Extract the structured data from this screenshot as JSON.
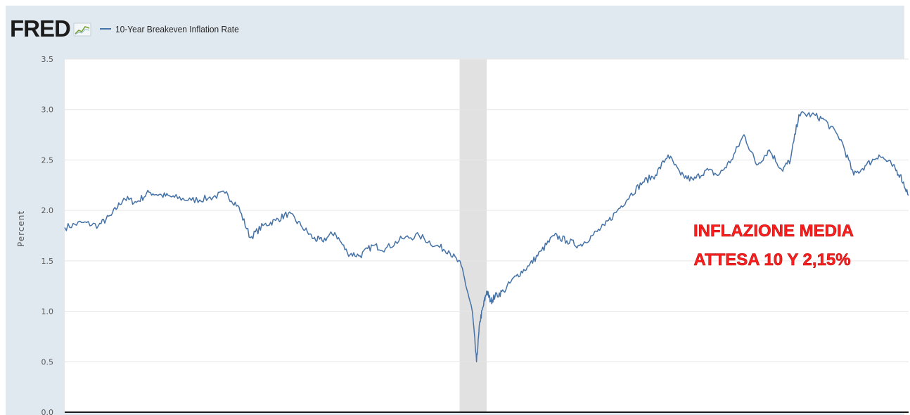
{
  "header": {
    "logo_text": "FRED",
    "logo_icon": "chart-line-icon",
    "series_label": "10-Year Breakeven Inflation Rate"
  },
  "colors": {
    "series": "#4572a7",
    "recession_band": "#e1e1e1",
    "frame": "#e1e9f0",
    "annotation": "#ff1e1e"
  },
  "chart_data": {
    "type": "line",
    "title": "",
    "xlabel": "",
    "ylabel": "Percent",
    "ylim": [
      0.0,
      3.5
    ],
    "yticks": [
      0.0,
      0.5,
      1.0,
      1.5,
      2.0,
      2.5,
      3.0,
      3.5
    ],
    "ytick_labels": [
      "0.0",
      "0.5",
      "1.0",
      "1.5",
      "2.0",
      "2.5",
      "3.0",
      "3.5"
    ],
    "grid": true,
    "x_axis_labels_visible": false,
    "x_scale": "time_fraction",
    "x": [
      0.0,
      0.02,
      0.04,
      0.055,
      0.07,
      0.085,
      0.1,
      0.115,
      0.13,
      0.15,
      0.17,
      0.19,
      0.205,
      0.22,
      0.235,
      0.25,
      0.265,
      0.28,
      0.295,
      0.305,
      0.32,
      0.335,
      0.35,
      0.365,
      0.38,
      0.4,
      0.42,
      0.44,
      0.455,
      0.47,
      0.483,
      0.488,
      0.492,
      0.496,
      0.5,
      0.505,
      0.51,
      0.52,
      0.535,
      0.55,
      0.565,
      0.58,
      0.595,
      0.61,
      0.625,
      0.64,
      0.655,
      0.67,
      0.685,
      0.7,
      0.715,
      0.73,
      0.745,
      0.76,
      0.775,
      0.79,
      0.805,
      0.82,
      0.835,
      0.85,
      0.86,
      0.87,
      0.885,
      0.9,
      0.92,
      0.935,
      0.95,
      0.965,
      0.98,
      0.99,
      1.0
    ],
    "series": [
      {
        "values": [
          1.83,
          1.88,
          1.85,
          1.95,
          2.12,
          2.08,
          2.18,
          2.15,
          2.13,
          2.1,
          2.12,
          2.17,
          2.05,
          1.73,
          1.85,
          1.9,
          1.97,
          1.85,
          1.72,
          1.7,
          1.78,
          1.58,
          1.55,
          1.65,
          1.62,
          1.72,
          1.75,
          1.65,
          1.6,
          1.45,
          1.0,
          0.5,
          0.9,
          1.05,
          1.2,
          1.1,
          1.15,
          1.2,
          1.35,
          1.45,
          1.6,
          1.75,
          1.7,
          1.65,
          1.75,
          1.85,
          2.0,
          2.15,
          2.28,
          2.35,
          2.55,
          2.35,
          2.3,
          2.4,
          2.35,
          2.5,
          2.75,
          2.45,
          2.6,
          2.4,
          2.5,
          2.95,
          2.95,
          2.9,
          2.7,
          2.35,
          2.45,
          2.55,
          2.45,
          2.35,
          2.15
        ]
      }
    ],
    "recession_band": [
      0.468,
      0.5
    ],
    "annotations": [
      {
        "line1": "INFLAZIONE MEDIA",
        "line2": "ATTESA 10 Y 2,15%"
      }
    ]
  }
}
